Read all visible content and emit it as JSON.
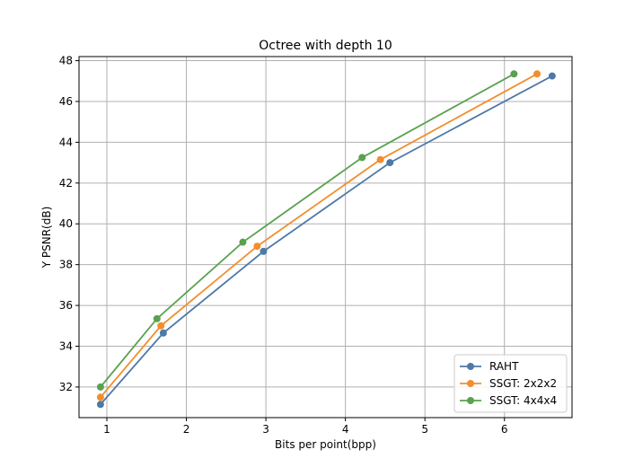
{
  "chart_data": {
    "type": "line",
    "title": "Octree with depth 10",
    "xlabel": "Bits per point(bpp)",
    "ylabel": "Y PSNR(dB)",
    "xlim": [
      0.65,
      6.85
    ],
    "ylim": [
      30.5,
      48.2
    ],
    "xticks": [
      1,
      2,
      3,
      4,
      5,
      6
    ],
    "yticks": [
      32,
      34,
      36,
      38,
      40,
      42,
      44,
      46,
      48
    ],
    "grid": true,
    "legend_position": "bottom-right",
    "series": [
      {
        "name": "RAHT",
        "color": "#4e79a7",
        "x": [
          0.92,
          1.71,
          2.97,
          4.56,
          6.6
        ],
        "y": [
          31.15,
          34.65,
          38.65,
          43.0,
          47.25
        ]
      },
      {
        "name": "SSGT: 2x2x2",
        "color": "#f28e2b",
        "x": [
          0.92,
          1.68,
          2.89,
          4.44,
          6.41
        ],
        "y": [
          31.5,
          35.0,
          38.9,
          43.15,
          47.35
        ]
      },
      {
        "name": "SSGT: 4x4x4",
        "color": "#59a14f",
        "x": [
          0.92,
          1.63,
          2.71,
          4.21,
          6.12
        ],
        "y": [
          32.0,
          35.35,
          39.1,
          43.25,
          47.35
        ]
      }
    ]
  }
}
